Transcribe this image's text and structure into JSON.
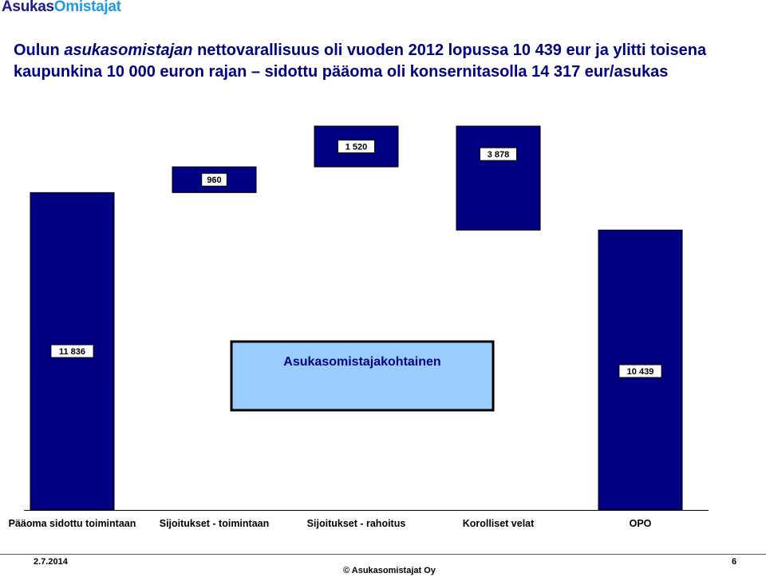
{
  "logo": {
    "part1": "Asukas",
    "part2": "Omistajat"
  },
  "title": {
    "part1": "Oulun ",
    "part2_italic": "asukasomistajan",
    "part3": " nettovarallisuus oli vuoden 2012 lopussa 10 439  eur ja ylitti toisena",
    "line2": "kaupunkina 10 000 euron rajan – sidottu pääoma oli konsernitasolla 14 317 eur/asukas"
  },
  "chart_data": {
    "type": "bar",
    "subtype": "waterfall",
    "categories": [
      "Pääoma sidottu toimintaan",
      "Sijoitukset - toimintaan",
      "Sijoitukset - rahoitus",
      "Korolliset velat",
      "OPO"
    ],
    "values": [
      11836,
      960,
      1520,
      3878,
      10439
    ],
    "labels": [
      "11 836",
      "960",
      "1 520",
      "3 878",
      "10 439"
    ],
    "bar_start": [
      0,
      11836,
      12796,
      14316,
      0
    ],
    "bar_end": [
      11836,
      12796,
      14316,
      10438,
      10439
    ],
    "ylim": [
      0,
      14316
    ],
    "annotation": "Asukasomistajakohtainen",
    "colors": {
      "bar": "#000080",
      "annotation_fill": "#99ccff",
      "annotation_text": "#000080"
    },
    "grid": false
  },
  "footer": {
    "date": "2.7.2014",
    "copyright": "© Asukasomistajat Oy",
    "page": "6"
  }
}
